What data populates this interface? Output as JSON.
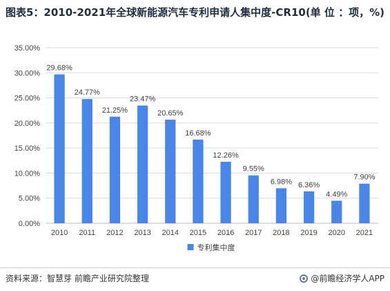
{
  "title": "图表5：2010-2021年全球新能源汽车专利申请人集中度-CR10(单 位 ：项，%)",
  "source": "资料来源：智慧芽 前瞻产业研究院整理",
  "brand": "@前瞻经济学人APP",
  "colors": {
    "bar": "#4a86e8",
    "grid": "#d9d9d9",
    "text": "#404040"
  },
  "chart_data": {
    "type": "bar",
    "categories": [
      "2010",
      "2011",
      "2012",
      "2013",
      "2014",
      "2015",
      "2016",
      "2017",
      "2018",
      "2019",
      "2020",
      "2021"
    ],
    "series": [
      {
        "name": "专利集中度",
        "values": [
          29.68,
          24.77,
          21.25,
          23.47,
          20.65,
          16.68,
          12.26,
          9.55,
          6.98,
          6.36,
          4.49,
          7.9
        ]
      }
    ],
    "data_labels": [
      "29.68%",
      "24.77%",
      "21.25%",
      "23.47%",
      "20.65%",
      "16.68%",
      "12.26%",
      "9.55%",
      "6.98%",
      "6.36%",
      "4.49%",
      "7.90%"
    ],
    "yticks": [
      "0.00%",
      "5.00%",
      "10.00%",
      "15.00%",
      "20.00%",
      "25.00%",
      "30.00%",
      "35.00%"
    ],
    "ylim": [
      0,
      35
    ],
    "grid": true,
    "legend": "bottom"
  }
}
